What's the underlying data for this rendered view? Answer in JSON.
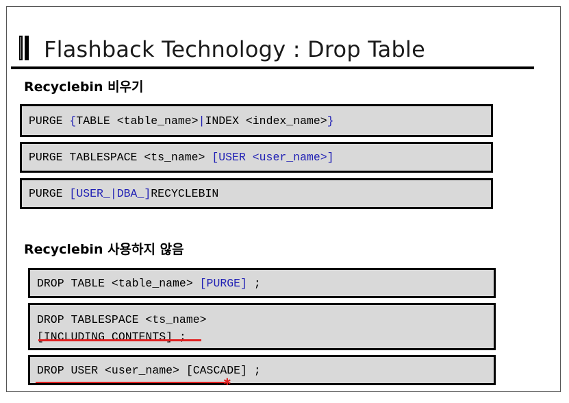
{
  "slide": {
    "title": "Flashback Technology : Drop Table"
  },
  "section1": {
    "heading": "Recyclebin 비우기",
    "lines": [
      {
        "p1": "PURGE ",
        "p2": "{",
        "p3": "TABLE <table_name>",
        "p4": "|",
        "p5": "INDEX <index_name>",
        "p6": "}"
      },
      {
        "p1": "PURGE TABLESPACE <ts_name> ",
        "p2": "[USER <user_name>]"
      },
      {
        "p1": "PURGE ",
        "p2": "[USER_",
        "p3": "|",
        "p4": "DBA_]",
        "p5": "RECYCLEBIN"
      }
    ]
  },
  "section2": {
    "heading": "Recyclebin 사용하지 않음",
    "lines": [
      {
        "p1": "DROP TABLE <table_name> ",
        "p2": "[PURGE]",
        "p3": " ;"
      },
      {
        "l1": "DROP TABLESPACE <ts_name>",
        "l2": "[INCLUDING CONTENTS] ;"
      },
      {
        "p1": "DROP USER <user_name> [CASCADE] ;"
      }
    ]
  },
  "colors": {
    "code_bg": "#d9d9d9",
    "keyword_blue": "#1f1fb4",
    "underline_red": "#e02020"
  }
}
